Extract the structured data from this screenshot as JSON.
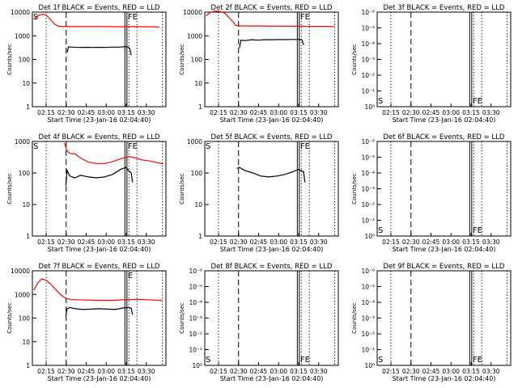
{
  "chart_data": [
    {
      "type": "line",
      "title": "Det 1f BLACK = Events, RED = LLD",
      "xlabel": "Start Time (23-Jan-16 02:04:40)",
      "ylabel": "Counts/sec",
      "yscale": "log",
      "ylim": [
        1,
        10000
      ],
      "ytick_labels": [
        "1",
        "10",
        "100",
        "1000",
        "10000"
      ],
      "xtick_labels": [
        "02:15",
        "02:30",
        "02:45",
        "03:00",
        "03:15",
        "03:30"
      ],
      "xlim_minutes_after_start": [
        0,
        100
      ],
      "annotations": [
        "S",
        "FE"
      ],
      "series": [
        {
          "color": "#ff0000",
          "x_minutes": [
            1,
            4,
            7,
            10,
            12,
            14,
            17,
            20,
            23,
            26,
            29,
            35,
            45,
            55,
            65,
            75,
            85,
            95
          ],
          "values": [
            5000,
            7000,
            8000,
            7800,
            6000,
            4500,
            3000,
            2500,
            2500,
            2450,
            2450,
            2450,
            2450,
            2450,
            2400,
            2450,
            2400,
            2350
          ]
        },
        {
          "color": "#000000",
          "x_minutes": [
            26,
            27,
            30,
            35,
            40,
            45,
            50,
            55,
            60,
            65,
            70,
            72,
            73,
            74
          ],
          "values": [
            200,
            340,
            330,
            320,
            325,
            320,
            325,
            320,
            330,
            330,
            350,
            320,
            280,
            150
          ]
        }
      ]
    },
    {
      "type": "line",
      "title": "Det 2f BLACK = Events, RED = LLD",
      "xlabel": "Start Time (23-Jan-16 02:04:40)",
      "ylabel": "Counts/sec",
      "yscale": "log",
      "ylim": [
        1,
        10000
      ],
      "ytick_labels": [
        "1",
        "10",
        "100",
        "1000",
        "10000"
      ],
      "xtick_labels": [
        "02:15",
        "02:30",
        "02:45",
        "03:00",
        "03:15",
        "03:30"
      ],
      "xlim_minutes_after_start": [
        0,
        100
      ],
      "annotations": [
        "FE"
      ],
      "series": [
        {
          "color": "#ff0000",
          "x_minutes": [
            1,
            4,
            7,
            10,
            12,
            15,
            18,
            21,
            23,
            26,
            30,
            40,
            50,
            60,
            70,
            80,
            90,
            97
          ],
          "values": [
            7000,
            9500,
            11000,
            11000,
            10500,
            9000,
            6000,
            4000,
            2800,
            2600,
            2600,
            2600,
            2550,
            2550,
            2550,
            2500,
            2500,
            2450
          ]
        },
        {
          "color": "#000000",
          "x_minutes": [
            26,
            27,
            30,
            35,
            40,
            45,
            50,
            55,
            60,
            65,
            70,
            72,
            73,
            74
          ],
          "values": [
            300,
            650,
            620,
            680,
            650,
            680,
            680,
            690,
            690,
            700,
            700,
            680,
            650,
            400
          ]
        }
      ]
    },
    {
      "type": "line",
      "title": "Det 3f BLACK = Events, RED = LLD",
      "xlabel": "Start Time (23-Jan-16 02:04:40)",
      "ylabel": "Counts/sec",
      "yscale": "log",
      "ylim": [
        1,
        1e-06
      ],
      "ytick_labels": [
        "10⁰",
        "10⁻¹",
        "10⁻²",
        "10⁻³",
        "10⁻⁴",
        "10⁻⁵",
        "10⁻⁶"
      ],
      "xtick_labels": [
        "02:15",
        "02:30",
        "02:45",
        "03:00",
        "03:15",
        "03:30"
      ],
      "xlim_minutes_after_start": [
        0,
        100
      ],
      "annotations": [
        "S",
        "FE"
      ],
      "series": []
    },
    {
      "type": "line",
      "title": "Det 4f BLACK = Events, RED = LLD",
      "xlabel": "Start Time (23-Jan-16 02:04:40)",
      "ylabel": "Counts/sec",
      "yscale": "log",
      "ylim": [
        1,
        1000
      ],
      "ytick_labels": [
        "1",
        "10",
        "100",
        "1000"
      ],
      "xtick_labels": [
        "02:15",
        "02:30",
        "02:45",
        "03:00",
        "03:15",
        "03:30"
      ],
      "xlim_minutes_after_start": [
        0,
        100
      ],
      "annotations": [
        "S",
        "FE"
      ],
      "series": [
        {
          "color": "#ff0000",
          "x_minutes": [
            24,
            26,
            28,
            32,
            36,
            42,
            48,
            54,
            60,
            66,
            72,
            76,
            82,
            88,
            94,
            98
          ],
          "values": [
            900,
            500,
            420,
            400,
            300,
            220,
            200,
            200,
            230,
            280,
            330,
            310,
            260,
            240,
            210,
            195
          ]
        },
        {
          "color": "#000000",
          "x_minutes": [
            25,
            26,
            28,
            32,
            36,
            42,
            48,
            54,
            60,
            66,
            70,
            72,
            74,
            75
          ],
          "values": [
            40,
            120,
            80,
            70,
            85,
            75,
            70,
            75,
            90,
            130,
            150,
            120,
            100,
            50
          ]
        }
      ]
    },
    {
      "type": "line",
      "title": "Det 5f BLACK = Events, RED = LLD",
      "xlabel": "Start Time (23-Jan-16 02:04:40)",
      "ylabel": "Counts/sec",
      "yscale": "log",
      "ylim": [
        1,
        1000
      ],
      "ytick_labels": [
        "1",
        "10",
        "100",
        "1000"
      ],
      "xtick_labels": [
        "02:15",
        "02:30",
        "02:45",
        "03:00",
        "03:15",
        "03:30"
      ],
      "xlim_minutes_after_start": [
        0,
        100
      ],
      "annotations": [
        "S",
        "FE"
      ],
      "series": [
        {
          "color": "#000000",
          "x_minutes": [
            24,
            26,
            30,
            36,
            42,
            48,
            54,
            60,
            66,
            70,
            72,
            74,
            75
          ],
          "values": [
            140,
            150,
            120,
            100,
            80,
            75,
            80,
            90,
            110,
            130,
            120,
            110,
            50
          ]
        }
      ]
    },
    {
      "type": "line",
      "title": "Det 6f BLACK = Events, RED = LLD",
      "xlabel": "Start Time (23-Jan-16 02:04:40)",
      "ylabel": "Counts/sec",
      "yscale": "log",
      "ylim": [
        1,
        1e-06
      ],
      "ytick_labels": [
        "10⁰",
        "10⁻¹",
        "10⁻²",
        "10⁻³",
        "10⁻⁴",
        "10⁻⁵",
        "10⁻⁶"
      ],
      "xtick_labels": [
        "02:15",
        "02:30",
        "02:45",
        "03:00",
        "03:15",
        "03:30"
      ],
      "xlim_minutes_after_start": [
        0,
        100
      ],
      "annotations": [
        "S",
        "FE"
      ],
      "series": []
    },
    {
      "type": "line",
      "title": "Det 7f BLACK = Events, RED = LLD",
      "xlabel": "Start Time (23-Jan-16 02:04:40)",
      "ylabel": "Counts/sec",
      "yscale": "log",
      "ylim": [
        1,
        10000
      ],
      "ytick_labels": [
        "1",
        "10",
        "100",
        "1000",
        "10000"
      ],
      "xtick_labels": [
        "02:15",
        "02:30",
        "02:45",
        "03:00",
        "03:15",
        "03:30"
      ],
      "xlim_minutes_after_start": [
        0,
        100
      ],
      "annotations": [
        "E"
      ],
      "series": [
        {
          "color": "#ff0000",
          "x_minutes": [
            1,
            4,
            7,
            10,
            13,
            16,
            19,
            22,
            24,
            26,
            30,
            40,
            50,
            60,
            70,
            80,
            90,
            97
          ],
          "values": [
            1500,
            3000,
            4500,
            4000,
            3000,
            2000,
            1300,
            900,
            750,
            650,
            600,
            580,
            560,
            560,
            600,
            620,
            580,
            560
          ]
        },
        {
          "color": "#000000",
          "x_minutes": [
            25,
            26,
            28,
            32,
            38,
            44,
            50,
            56,
            62,
            68,
            72,
            74,
            75
          ],
          "values": [
            120,
            250,
            280,
            250,
            230,
            240,
            250,
            240,
            230,
            270,
            280,
            260,
            140
          ]
        }
      ]
    },
    {
      "type": "line",
      "title": "Det 8f BLACK = Events, RED = LLD",
      "xlabel": "Start Time (23-Jan-16 02:04:40)",
      "ylabel": "Counts/sec",
      "yscale": "log",
      "ylim": [
        1,
        1e-06
      ],
      "ytick_labels": [
        "10⁰",
        "10⁻¹",
        "10⁻²",
        "10⁻³",
        "10⁻⁴",
        "10⁻⁵",
        "10⁻⁶"
      ],
      "xtick_labels": [
        "02:15",
        "02:30",
        "02:45",
        "03:00",
        "03:15",
        "03:30"
      ],
      "xlim_minutes_after_start": [
        0,
        100
      ],
      "annotations": [
        "S",
        "FE"
      ],
      "series": []
    },
    {
      "type": "line",
      "title": "Det 9f BLACK = Events, RED = LLD",
      "xlabel": "Start Time (23-Jan-16 02:04:40)",
      "ylabel": "Counts/sec",
      "yscale": "log",
      "ylim": [
        1,
        1e-06
      ],
      "ytick_labels": [
        "10⁰",
        "10⁻¹",
        "10⁻²",
        "10⁻³",
        "10⁻⁴",
        "10⁻⁵",
        "10⁻⁶"
      ],
      "xtick_labels": [
        "02:15",
        "02:30",
        "02:45",
        "03:00",
        "03:15",
        "03:30"
      ],
      "xlim_minutes_after_start": [
        0,
        100
      ],
      "annotations": [
        "S",
        "FE"
      ],
      "series": []
    }
  ]
}
